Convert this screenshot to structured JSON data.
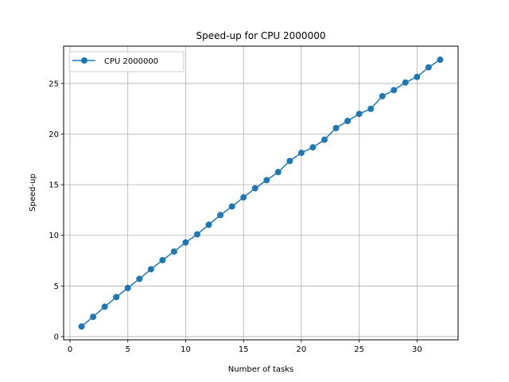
{
  "chart_data": {
    "type": "line",
    "title": "Speed-up for CPU 2000000",
    "xlabel": "Number of tasks",
    "ylabel": "Speed-up",
    "xlim": [
      -0.55,
      33.55
    ],
    "ylim": [
      -0.32,
      28.69
    ],
    "xticks": [
      0,
      5,
      10,
      15,
      20,
      25,
      30
    ],
    "yticks": [
      0,
      5,
      10,
      15,
      20,
      25
    ],
    "grid": true,
    "legend_position": "top-left",
    "series": [
      {
        "name": "CPU 2000000",
        "color": "#1f77b4",
        "marker": "circle",
        "x": [
          1,
          2,
          3,
          4,
          5,
          6,
          7,
          8,
          9,
          10,
          11,
          12,
          13,
          14,
          15,
          16,
          17,
          18,
          19,
          20,
          21,
          22,
          23,
          24,
          25,
          26,
          27,
          28,
          29,
          30,
          31,
          32
        ],
        "y": [
          1.0,
          1.95,
          2.95,
          3.9,
          4.8,
          5.7,
          6.65,
          7.55,
          8.4,
          9.3,
          10.1,
          11.05,
          12.0,
          12.85,
          13.75,
          14.65,
          15.45,
          16.25,
          17.35,
          18.15,
          18.7,
          19.45,
          20.6,
          21.3,
          22.0,
          22.5,
          23.75,
          24.35,
          25.1,
          25.65,
          26.6,
          27.35
        ]
      }
    ]
  }
}
